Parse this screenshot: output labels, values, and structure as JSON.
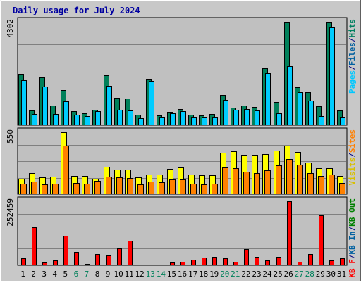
{
  "chart_data": {
    "type": "bar",
    "title": "Daily usage for July 2024",
    "categories": [
      "1",
      "2",
      "3",
      "4",
      "5",
      "6",
      "7",
      "8",
      "9",
      "10",
      "11",
      "12",
      "13",
      "14",
      "15",
      "16",
      "17",
      "18",
      "19",
      "20",
      "21",
      "22",
      "23",
      "24",
      "25",
      "26",
      "27",
      "28",
      "29",
      "30",
      "31"
    ],
    "weekend_days": [
      "6",
      "7",
      "13",
      "14",
      "20",
      "21",
      "27",
      "28"
    ],
    "legend": {
      "top": [
        {
          "label": "Pages",
          "color": "#00c8ff"
        },
        {
          "label": "/",
          "color": "#000080"
        },
        {
          "label": "Files",
          "color": "#0060a0"
        },
        {
          "label": "/",
          "color": "#000080"
        },
        {
          "label": "Hits",
          "color": "#008060"
        }
      ],
      "middle": [
        {
          "label": "Visits",
          "color": "#d8c000"
        },
        {
          "label": "/",
          "color": "#000080"
        },
        {
          "label": "Sites",
          "color": "#ff8000"
        }
      ],
      "bottom": [
        {
          "label": "KB F",
          "color": "#ff0000"
        },
        {
          "label": "/",
          "color": "#000080"
        },
        {
          "label": "KB In",
          "color": "#0060a0"
        },
        {
          "label": "/",
          "color": "#000080"
        },
        {
          "label": "KB Out",
          "color": "#008000"
        }
      ]
    },
    "panels": [
      {
        "name": "hits",
        "ymax_label": "4302",
        "ymax": 4302,
        "series": [
          {
            "name": "Hits",
            "color": "#00805a",
            "values": [
              2150,
              600,
              2000,
              820,
              1450,
              580,
              500,
              640,
              2080,
              1150,
              1100,
              440,
              1930,
              400,
              560,
              680,
              440,
              420,
              480,
              1250,
              720,
              830,
              760,
              2370,
              970,
              4302,
              1570,
              1370,
              790,
              4300,
              620
            ]
          },
          {
            "name": "Files",
            "color": "#0000cc",
            "values": [
              0,
              0,
              0,
              0,
              0,
              0,
              0,
              0,
              0,
              0,
              0,
              0,
              0,
              0,
              0,
              0,
              0,
              0,
              0,
              0,
              0,
              0,
              0,
              0,
              0,
              920,
              0,
              0,
              0,
              0,
              0
            ]
          },
          {
            "name": "Pages",
            "color": "#00ccff",
            "values": [
              1880,
              460,
              1600,
              480,
              1000,
              430,
              380,
              580,
              1650,
              640,
              620,
              300,
              1850,
              340,
              500,
              580,
              340,
              360,
              360,
              1060,
              630,
              660,
              620,
              2170,
              500,
              2470,
              1380,
              1030,
              380,
              4060,
              360
            ]
          }
        ]
      },
      {
        "name": "visits",
        "ymax_label": "550",
        "ymax": 550,
        "series": [
          {
            "name": "Visits",
            "color": "#ffff00",
            "values": [
              135,
              190,
              150,
              155,
              550,
              160,
              160,
              135,
              245,
              220,
              220,
              150,
              175,
              175,
              225,
              240,
              175,
              170,
              170,
              370,
              380,
              350,
              350,
              355,
              390,
              430,
              375,
              280,
              230,
              230,
              160
            ]
          },
          {
            "name": "Sites",
            "color": "#ff8000",
            "values": [
              95,
              110,
              85,
              95,
              430,
              100,
              95,
              120,
              155,
              150,
              145,
              90,
              110,
              105,
              130,
              130,
              95,
              90,
              95,
              235,
              230,
              200,
              185,
              210,
              255,
              310,
              260,
              190,
              160,
              175,
              100
            ]
          }
        ]
      },
      {
        "name": "kbytes",
        "ymax_label": "252459",
        "ymax": 252459,
        "series": [
          {
            "name": "KB F",
            "color": "#ff0000",
            "values": [
              27000,
              150000,
              10000,
              20000,
              116000,
              52000,
              5000,
              45000,
              40000,
              67000,
              96000,
              4000,
              4000,
              3000,
              12000,
              15000,
              23000,
              30000,
              34000,
              29000,
              15000,
              63000,
              34000,
              19000,
              34000,
              252459,
              14000,
              45000,
              196000,
              19000,
              28000
            ]
          }
        ]
      }
    ]
  }
}
